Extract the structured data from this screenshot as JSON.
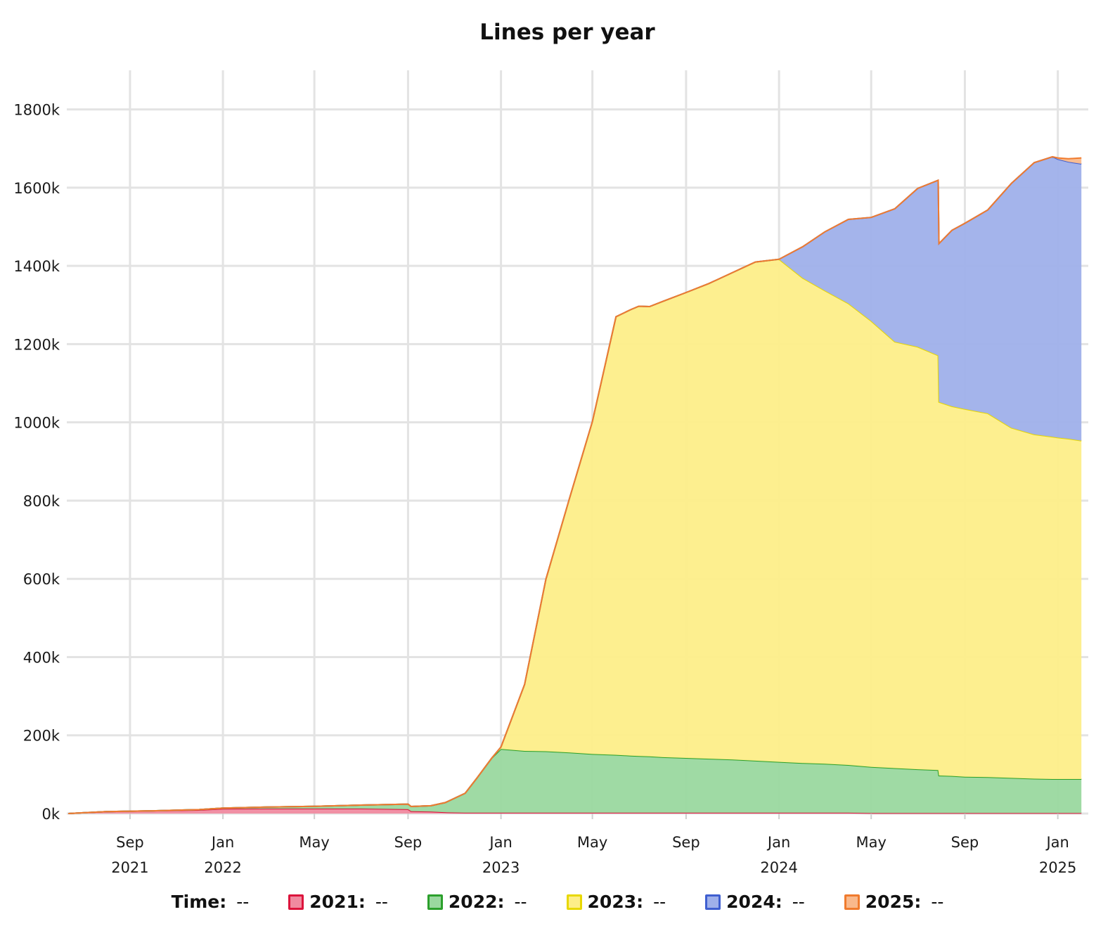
{
  "chart_data": {
    "type": "area",
    "stacked": true,
    "title": "Lines per year",
    "y_ticks": [
      "0k",
      "200k",
      "400k",
      "600k",
      "800k",
      "1000k",
      "1200k",
      "1400k",
      "1600k",
      "1800k"
    ],
    "y_tick_values": [
      0,
      200000,
      400000,
      600000,
      800000,
      1000000,
      1200000,
      1400000,
      1600000,
      1800000
    ],
    "ylim": [
      0,
      1900000
    ],
    "x_ticks": [
      {
        "date": "2021-09-01",
        "month": "Sep",
        "year": "2021"
      },
      {
        "date": "2022-01-01",
        "month": "Jan",
        "year": "2022"
      },
      {
        "date": "2022-05-01",
        "month": "May",
        "year": ""
      },
      {
        "date": "2022-09-01",
        "month": "Sep",
        "year": ""
      },
      {
        "date": "2023-01-01",
        "month": "Jan",
        "year": "2023"
      },
      {
        "date": "2023-05-01",
        "month": "May",
        "year": ""
      },
      {
        "date": "2023-09-01",
        "month": "Sep",
        "year": ""
      },
      {
        "date": "2024-01-01",
        "month": "Jan",
        "year": "2024"
      },
      {
        "date": "2024-05-01",
        "month": "May",
        "year": ""
      },
      {
        "date": "2024-09-01",
        "month": "Sep",
        "year": ""
      },
      {
        "date": "2025-01-01",
        "month": "Jan",
        "year": "2025"
      }
    ],
    "xlim": [
      "2021-06-10",
      "2025-02-10"
    ],
    "grid": true,
    "legend_position": "bottom",
    "x": [
      "2021-06-12",
      "2021-08-01",
      "2021-10-01",
      "2021-12-01",
      "2022-01-01",
      "2022-03-01",
      "2022-05-01",
      "2022-07-01",
      "2022-09-01",
      "2022-09-05",
      "2022-10-01",
      "2022-10-20",
      "2022-11-15",
      "2022-12-01",
      "2022-12-20",
      "2023-01-01",
      "2023-02-01",
      "2023-03-01",
      "2023-04-01",
      "2023-05-01",
      "2023-06-01",
      "2023-06-20",
      "2023-07-01",
      "2023-07-15",
      "2023-08-01",
      "2023-09-01",
      "2023-10-01",
      "2023-11-01",
      "2023-12-01",
      "2024-01-01",
      "2024-02-01",
      "2024-03-01",
      "2024-04-01",
      "2024-05-01",
      "2024-06-01",
      "2024-07-01",
      "2024-07-28",
      "2024-07-29",
      "2024-08-15",
      "2024-09-01",
      "2024-10-01",
      "2024-11-01",
      "2024-12-01",
      "2024-12-25",
      "2025-01-01",
      "2025-01-15",
      "2025-02-01"
    ],
    "series": [
      {
        "name": "2021",
        "color": "#dc143c",
        "fill": "#f08aa0",
        "values": [
          0,
          5000,
          7000,
          9000,
          12000,
          12500,
          12500,
          12500,
          11000,
          6000,
          5000,
          3000,
          2000,
          2000,
          2000,
          2000,
          2000,
          2000,
          2000,
          2000,
          2000,
          2000,
          2000,
          2000,
          2000,
          2000,
          2000,
          2000,
          2000,
          2000,
          2000,
          2000,
          2000,
          1000,
          1000,
          1000,
          1000,
          1000,
          1000,
          1000,
          1000,
          1000,
          1000,
          1000,
          1000,
          1000,
          1000
        ]
      },
      {
        "name": "2022",
        "color": "#2ca02c",
        "fill": "#9ad89f",
        "values": [
          0,
          0,
          0,
          1000,
          2000,
          4000,
          6000,
          9000,
          13000,
          12000,
          15000,
          25000,
          50000,
          90000,
          140000,
          163000,
          158000,
          157000,
          154000,
          150000,
          148000,
          146000,
          145000,
          144000,
          142000,
          140000,
          138000,
          136000,
          133000,
          130000,
          127000,
          125000,
          122000,
          118000,
          115000,
          112000,
          110000,
          96000,
          95000,
          93000,
          92000,
          90000,
          88000,
          87000,
          87000,
          87000,
          87000
        ]
      },
      {
        "name": "2023",
        "color": "#e8d800",
        "fill": "#fdee89",
        "values": [
          0,
          0,
          0,
          0,
          0,
          0,
          0,
          0,
          0,
          0,
          0,
          0,
          0,
          0,
          0,
          5000,
          170000,
          440000,
          650000,
          850000,
          1120000,
          1140000,
          1150000,
          1150000,
          1165000,
          1190000,
          1215000,
          1245000,
          1275000,
          1285000,
          1240000,
          1210000,
          1180000,
          1140000,
          1090000,
          1080000,
          1060000,
          955000,
          945000,
          940000,
          930000,
          895000,
          880000,
          875000,
          873000,
          870000,
          865000
        ]
      },
      {
        "name": "2024",
        "color": "#3f5fd0",
        "fill": "#9fb0ea",
        "values": [
          0,
          0,
          0,
          0,
          0,
          0,
          0,
          0,
          0,
          0,
          0,
          0,
          0,
          0,
          0,
          0,
          0,
          0,
          0,
          0,
          0,
          0,
          0,
          0,
          0,
          0,
          0,
          0,
          0,
          0,
          80000,
          150000,
          215000,
          265000,
          340000,
          405000,
          448000,
          405000,
          450000,
          475000,
          520000,
          625000,
          695000,
          716000,
          712000,
          708000,
          708000
        ]
      },
      {
        "name": "2025",
        "color": "#f07b2e",
        "fill": "#f9b98c",
        "values": [
          0,
          0,
          0,
          0,
          0,
          0,
          0,
          0,
          0,
          0,
          0,
          0,
          0,
          0,
          0,
          0,
          0,
          0,
          0,
          0,
          0,
          0,
          0,
          0,
          0,
          0,
          0,
          0,
          0,
          0,
          0,
          0,
          0,
          0,
          0,
          0,
          0,
          0,
          0,
          0,
          0,
          0,
          0,
          0,
          3000,
          8000,
          15000
        ]
      }
    ]
  },
  "legend": {
    "time_label": "Time:",
    "time_value": "--",
    "items": [
      {
        "label": "2021:",
        "value": "--",
        "color": "#dc143c",
        "fill": "#f08aa0"
      },
      {
        "label": "2022:",
        "value": "--",
        "color": "#2ca02c",
        "fill": "#9ad89f"
      },
      {
        "label": "2023:",
        "value": "--",
        "color": "#e8d800",
        "fill": "#fdee89"
      },
      {
        "label": "2024:",
        "value": "--",
        "color": "#3f5fd0",
        "fill": "#9fb0ea"
      },
      {
        "label": "2025:",
        "value": "--",
        "color": "#f07b2e",
        "fill": "#f9b98c"
      }
    ]
  }
}
